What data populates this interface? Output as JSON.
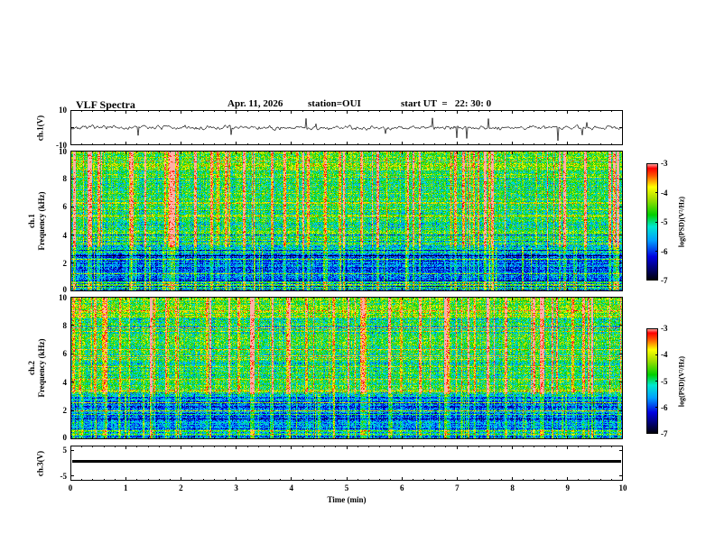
{
  "header": {
    "title": "VLF Spectra",
    "date": "Apr. 11, 2026",
    "station": "station=OUI",
    "start_ut": "start UT  =   22: 30: 0"
  },
  "xaxis": {
    "label": "Time (min)",
    "ticks": [
      0,
      1,
      2,
      3,
      4,
      5,
      6,
      7,
      8,
      9,
      10
    ],
    "range_min": [
      0,
      10
    ]
  },
  "colors": {
    "background": "#ffffff",
    "frame": "#000000",
    "trace": "#000000",
    "colormap_stops": [
      [
        0.0,
        "#000008"
      ],
      [
        0.08,
        "#000060"
      ],
      [
        0.2,
        "#0000e0"
      ],
      [
        0.34,
        "#00a0ff"
      ],
      [
        0.46,
        "#00e8d0"
      ],
      [
        0.56,
        "#00d000"
      ],
      [
        0.7,
        "#a8e000"
      ],
      [
        0.8,
        "#ffff00"
      ],
      [
        0.9,
        "#ff5000"
      ],
      [
        0.96,
        "#ff0000"
      ],
      [
        1.0,
        "#ffb0a8"
      ]
    ]
  },
  "chart_data": [
    {
      "id": "ch1_waveform",
      "type": "line",
      "ylabel": "ch.1(V)",
      "ylim": [
        -10,
        10
      ],
      "yticks": [
        10,
        -10
      ],
      "x_minutes": [
        0,
        10
      ],
      "description": "Broadband VLF time series: quasi-continuous noise of about ±2 V with sporadic impulsive sferic spikes reaching ±10 V over the 10-minute record."
    },
    {
      "id": "ch1_spectrogram",
      "type": "heatmap",
      "ylabel_line1": "ch.1",
      "ylabel_line2": "Frequency (kHz)",
      "ylim_khz": [
        0,
        10
      ],
      "yticks": [
        10,
        8,
        6,
        4,
        2,
        0
      ],
      "x_minutes": [
        0,
        10
      ],
      "value_label": "log(PSD)(V²/Hz)",
      "value_range": [
        -7,
        -3
      ],
      "bands": [
        {
          "freq_khz": [
            3.3,
            10
          ],
          "level_log_psd": -4.5,
          "texture": "green/yellow continuum with dense vertical red sferic streaks reaching -3"
        },
        {
          "freq_khz": [
            0.7,
            3.3
          ],
          "level_log_psd": -6.2,
          "texture": "blue/dark background with cyan speckle, vertical streaks and horizontal interference lines"
        },
        {
          "freq_khz": [
            0,
            0.7
          ],
          "level_log_psd": -5.3,
          "texture": "dense mixed narrowband horizontal lines (hum harmonics)"
        }
      ]
    },
    {
      "id": "ch2_spectrogram",
      "type": "heatmap",
      "ylabel_line1": "ch.2",
      "ylabel_line2": "Frequency (kHz)",
      "ylim_khz": [
        0,
        10
      ],
      "yticks": [
        10,
        8,
        6,
        4,
        2,
        0
      ],
      "x_minutes": [
        0,
        10
      ],
      "value_label": "log(PSD)(V²/Hz)",
      "value_range": [
        -7,
        -3
      ],
      "bands": [
        {
          "freq_khz": [
            3.3,
            10
          ],
          "level_log_psd": -4.5,
          "texture": "green/yellow continuum with vertical red sferic streaks reaching -3"
        },
        {
          "freq_khz": [
            0.7,
            3.3
          ],
          "level_log_psd": -6.3,
          "texture": "blue/dark background with cyan speckle and horizontal interference lines"
        },
        {
          "freq_khz": [
            0,
            0.7
          ],
          "level_log_psd": -5.4,
          "texture": "dense mixed narrowband horizontal lines"
        }
      ]
    },
    {
      "id": "ch3_waveform",
      "type": "line",
      "ylabel": "ch.3(V)",
      "ylim": [
        -5,
        5
      ],
      "yticks": [
        5,
        -5
      ],
      "x_minutes": [
        0,
        10
      ],
      "constant_value": 0,
      "description": "Flat trace at ~0 V for the whole interval (thick black line, channel inactive)."
    }
  ],
  "colorbars": [
    {
      "label": "log(PSD)(V²/Hz)",
      "ticks": [
        -3,
        -4,
        -5,
        -6,
        -7
      ],
      "range": [
        -7,
        -3
      ]
    },
    {
      "label": "log(PSD)(V²/Hz)",
      "ticks": [
        -3,
        -4,
        -5,
        -6,
        -7
      ],
      "range": [
        -7,
        -3
      ]
    }
  ]
}
